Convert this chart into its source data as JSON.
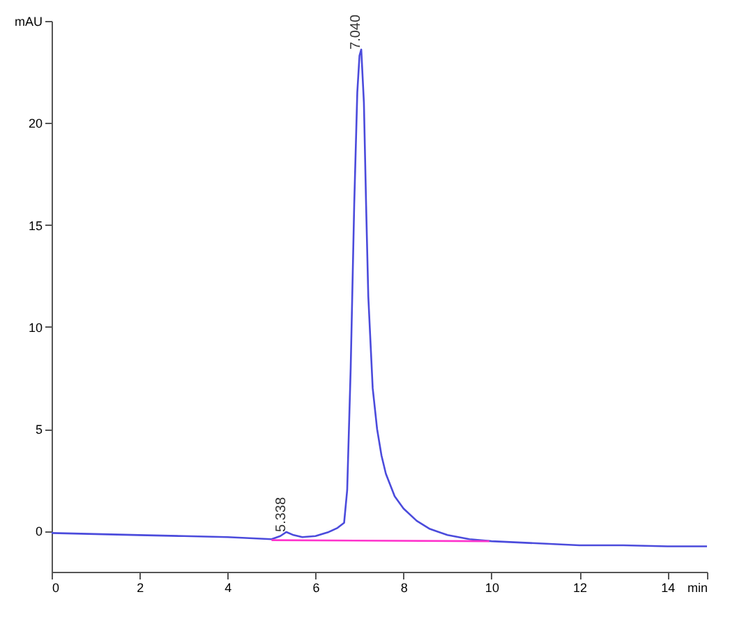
{
  "chart_data": {
    "type": "line",
    "series": [
      {
        "color": "#4b4bdc",
        "x": [
          0,
          1,
          2,
          3,
          4,
          4.5,
          5,
          5.2,
          5.338,
          5.5,
          5.7,
          6,
          6.3,
          6.5,
          6.65,
          6.72,
          6.8,
          6.88,
          6.95,
          7.0,
          7.04,
          7.1,
          7.15,
          7.2,
          7.3,
          7.4,
          7.5,
          7.6,
          7.8,
          8,
          8.3,
          8.6,
          9,
          9.5,
          10,
          11,
          12,
          13,
          14,
          14.9
        ],
        "values": [
          -0.1,
          -0.15,
          -0.2,
          -0.25,
          -0.3,
          -0.35,
          -0.4,
          -0.25,
          -0.05,
          -0.2,
          -0.3,
          -0.25,
          -0.05,
          0.15,
          0.4,
          2.0,
          8.0,
          16.0,
          21.5,
          23.3,
          23.6,
          21.0,
          16.0,
          11.5,
          7.0,
          5.0,
          3.7,
          2.8,
          1.7,
          1.1,
          0.5,
          0.1,
          -0.2,
          -0.4,
          -0.5,
          -0.6,
          -0.7,
          -0.7,
          -0.75,
          -0.75
        ]
      },
      {
        "color": "#ff33cc",
        "x": [
          5.0,
          9.95
        ],
        "values": [
          -0.45,
          -0.5
        ]
      }
    ],
    "xlim": [
      0,
      14.9
    ],
    "xticks": [
      0,
      2,
      4,
      6,
      8,
      10,
      12,
      14,
      {
        "value": 14.9,
        "label": "min"
      }
    ],
    "ylim": [
      -2,
      25
    ],
    "yticks": [
      0,
      5,
      10,
      15,
      20,
      {
        "value": 25,
        "label": "mAU"
      }
    ],
    "annotations": [
      {
        "text": "5.338",
        "x": 5.338,
        "y": -0.05
      },
      {
        "text": "7.040",
        "x": 7.04,
        "y": 23.6
      }
    ],
    "grid": false,
    "marker": "none",
    "line_style": "solid"
  }
}
